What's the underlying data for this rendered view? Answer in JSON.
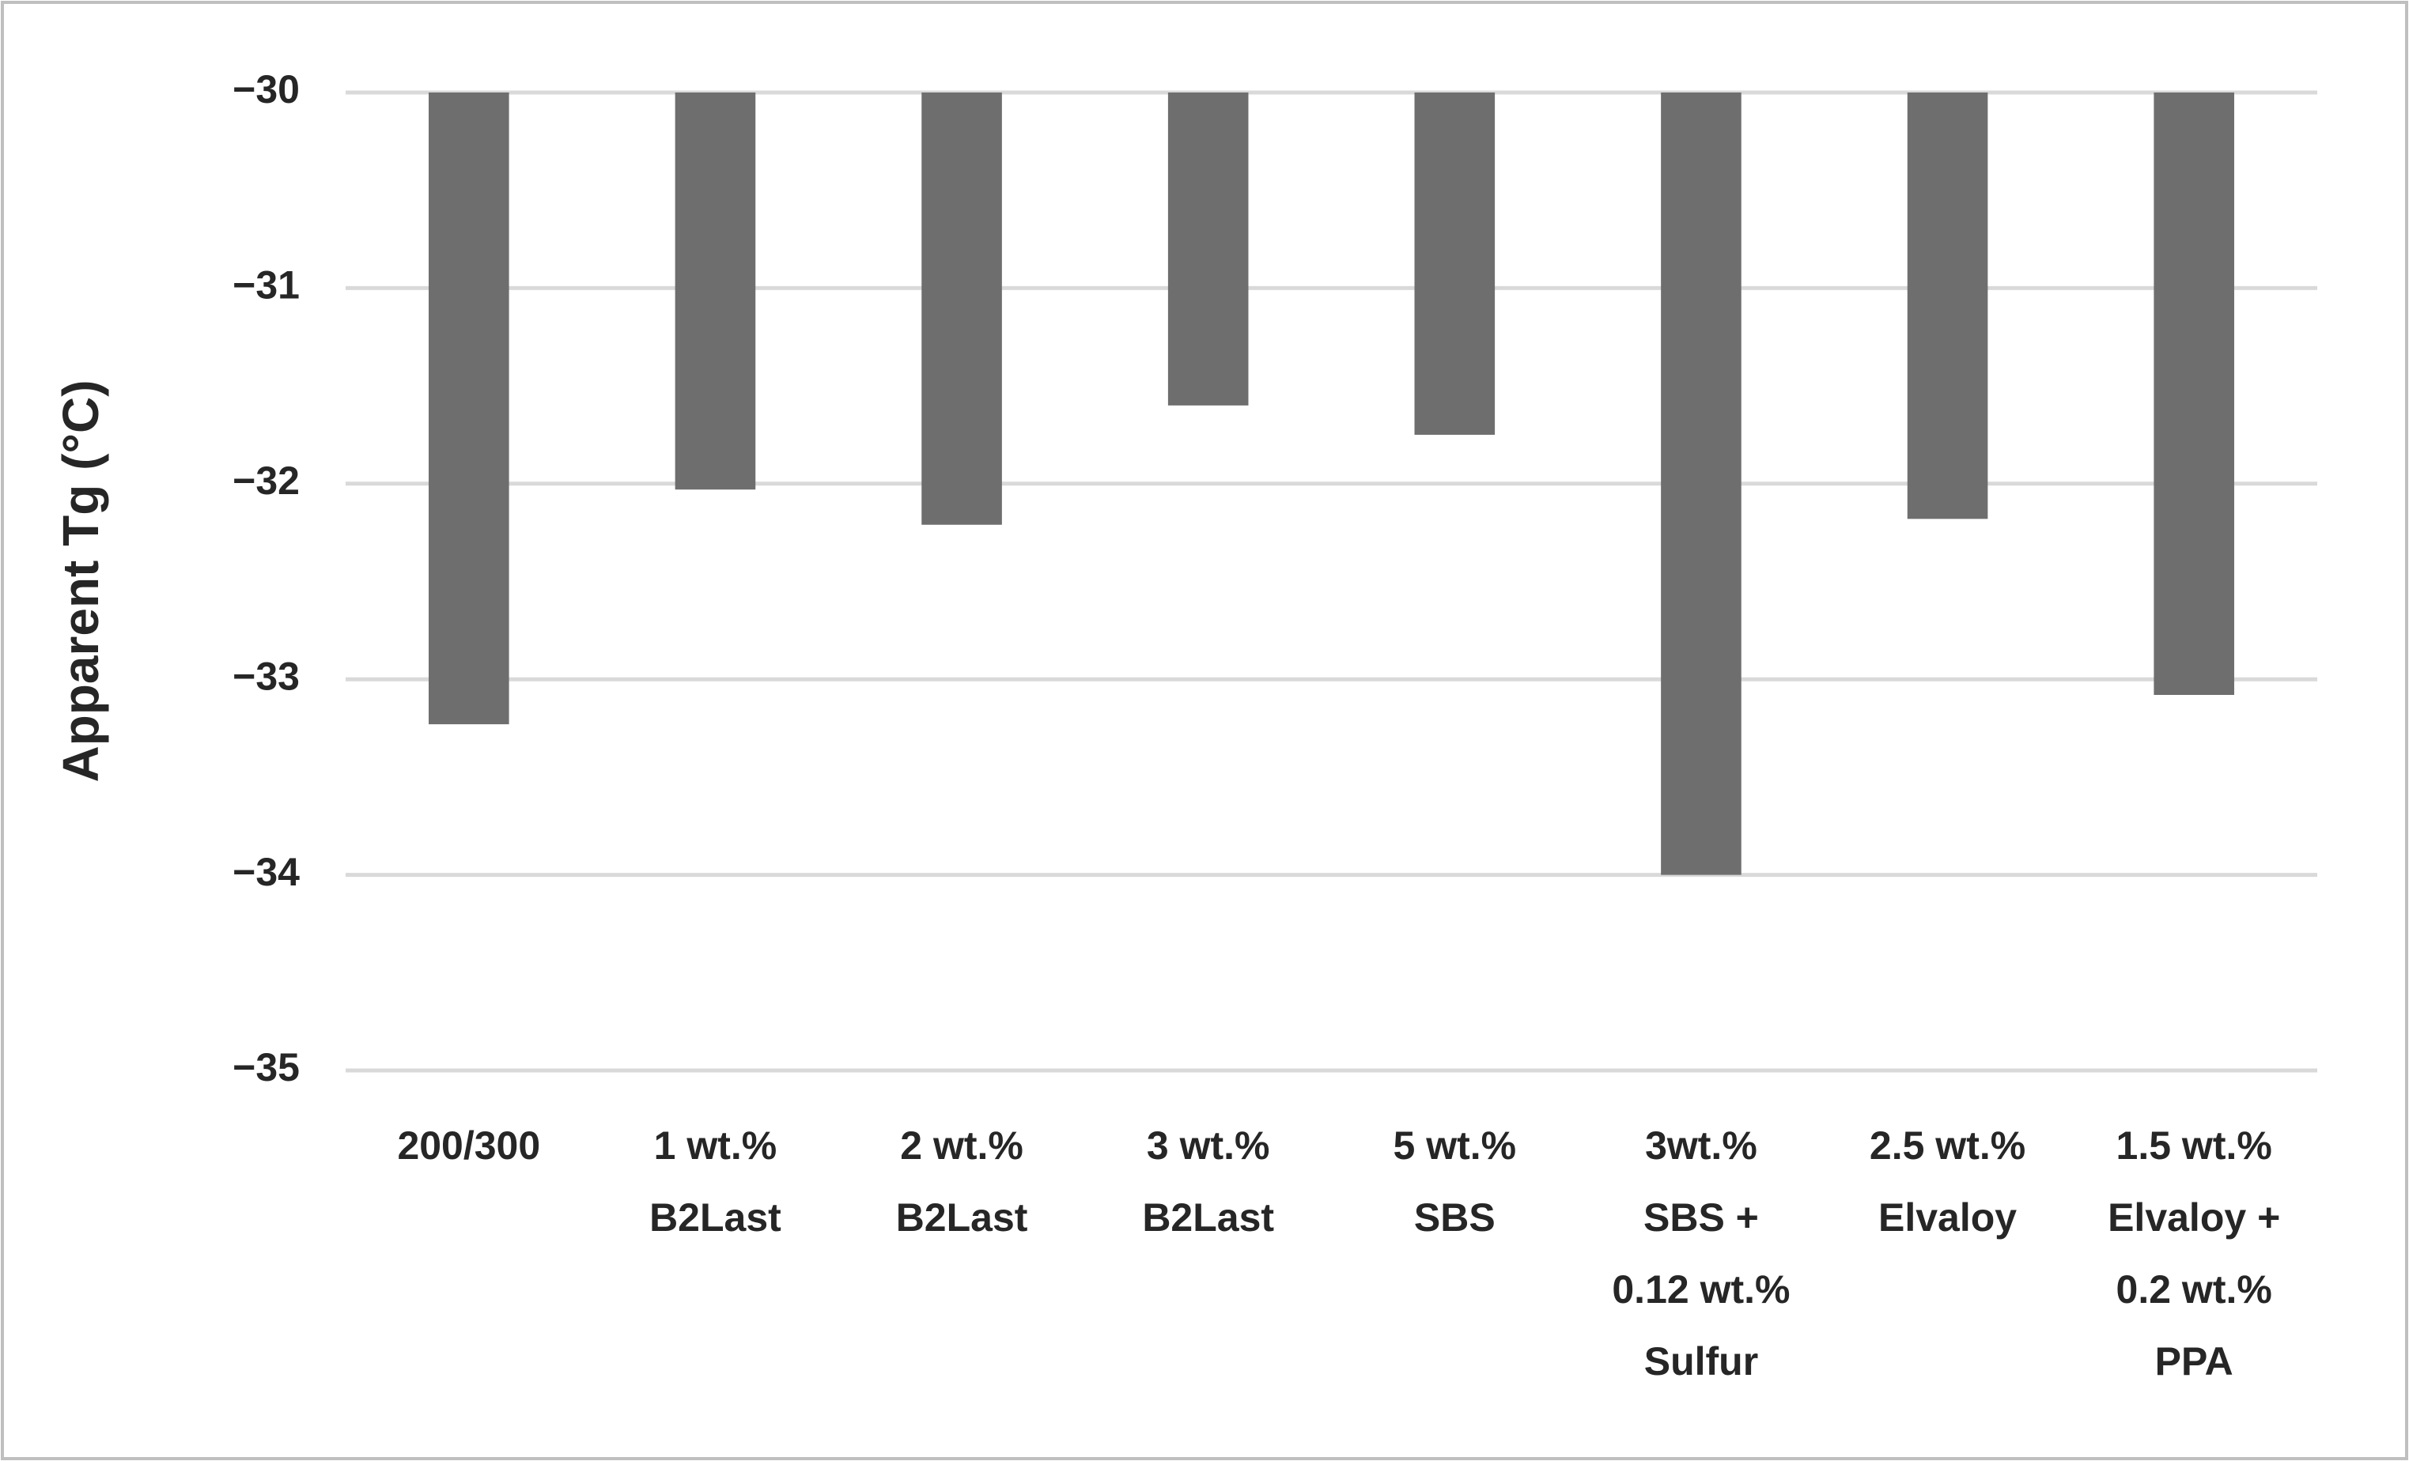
{
  "chart_data": {
    "type": "bar",
    "y_label": "Apparent Tg (°C)",
    "categories": [
      [
        "200/300"
      ],
      [
        "1 wt.%",
        "B2Last"
      ],
      [
        "2 wt.%",
        "B2Last"
      ],
      [
        "3 wt.%",
        "B2Last"
      ],
      [
        "5 wt.%",
        "SBS"
      ],
      [
        "3wt.%",
        "SBS +",
        "0.12 wt.%",
        "Sulfur"
      ],
      [
        "2.5 wt.%",
        "Elvaloy"
      ],
      [
        "1.5 wt.%",
        "Elvaloy +",
        "0.2 wt.%",
        "PPA"
      ]
    ],
    "values": [
      -33.23,
      -32.03,
      -32.21,
      -31.6,
      -31.75,
      -34.0,
      -32.18,
      -33.08
    ],
    "color": "#6e6e6e",
    "ylim": [
      -35,
      -30
    ],
    "yticks": [
      {
        "value": -35,
        "label": "−35"
      },
      {
        "value": -34,
        "label": "−34"
      },
      {
        "value": -33,
        "label": "−33"
      },
      {
        "value": -32,
        "label": "−32"
      },
      {
        "value": -31,
        "label": "−31"
      },
      {
        "value": -30,
        "label": "−30"
      }
    ],
    "grid": true
  }
}
